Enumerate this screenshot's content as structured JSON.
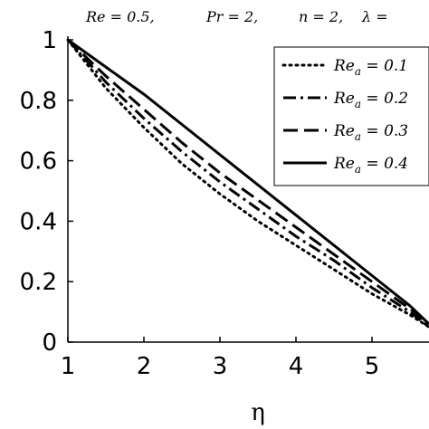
{
  "params": [
    "Re = 0.5,",
    "Pr = 2,",
    "n = 2,",
    "λ ="
  ],
  "chart_data": {
    "type": "line",
    "title": "",
    "xlabel": "η",
    "ylabel": "",
    "xlim": [
      1,
      5.75
    ],
    "ylim": [
      0,
      1
    ],
    "xticks": [
      1,
      2,
      3,
      4,
      5
    ],
    "xtick_labels": [
      "1",
      "2",
      "3",
      "4",
      "5"
    ],
    "yticks": [
      0,
      0.2,
      0.4,
      0.6,
      0.8,
      1
    ],
    "ytick_labels": [
      "0",
      "0.2",
      "0.4",
      "0.6",
      "0.8",
      "1"
    ],
    "grid": false,
    "legend_position": "top-right",
    "series": [
      {
        "name": "Re",
        "sub": "a",
        "suffix": " = 0.1",
        "style": "dotted",
        "x": [
          1,
          1.5,
          2,
          2.5,
          3,
          3.5,
          4,
          4.5,
          5,
          5.5,
          5.75
        ],
        "y": [
          1,
          0.84,
          0.71,
          0.59,
          0.49,
          0.4,
          0.32,
          0.24,
          0.16,
          0.09,
          0.05
        ]
      },
      {
        "name": "Re",
        "sub": "a",
        "suffix": " = 0.2",
        "style": "dash-dot",
        "x": [
          1,
          1.5,
          2,
          2.5,
          3,
          3.5,
          4,
          4.5,
          5,
          5.5,
          5.75
        ],
        "y": [
          1,
          0.86,
          0.74,
          0.63,
          0.53,
          0.44,
          0.35,
          0.27,
          0.18,
          0.1,
          0.05
        ]
      },
      {
        "name": "Re",
        "sub": "a",
        "suffix": " = 0.3",
        "style": "dashed",
        "x": [
          1,
          1.5,
          2,
          2.5,
          3,
          3.5,
          4,
          4.5,
          5,
          5.5,
          5.75
        ],
        "y": [
          1,
          0.88,
          0.77,
          0.66,
          0.56,
          0.47,
          0.38,
          0.29,
          0.2,
          0.11,
          0.06
        ]
      },
      {
        "name": "Re",
        "sub": "a",
        "suffix": " = 0.4",
        "style": "solid",
        "x": [
          1,
          1.5,
          2,
          2.5,
          3,
          3.5,
          4,
          4.5,
          5,
          5.5,
          5.75
        ],
        "y": [
          1,
          0.91,
          0.82,
          0.72,
          0.62,
          0.52,
          0.42,
          0.32,
          0.22,
          0.12,
          0.06
        ]
      }
    ]
  }
}
